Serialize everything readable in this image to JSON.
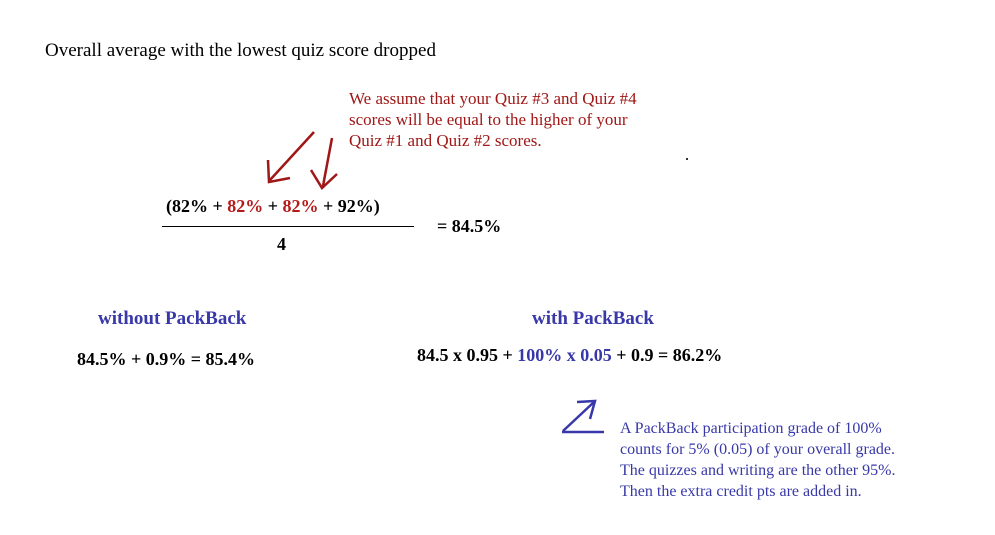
{
  "title": "Overall average  with the lowest quiz score dropped",
  "assumption_note": [
    "We assume that your Quiz #3 and Quiz #4",
    "scores will be equal to the higher of your",
    "Quiz #1 and Quiz #2 scores."
  ],
  "formula": {
    "open": "(82% + ",
    "quiz3": "82%",
    "plus1": " + ",
    "quiz4": "82%",
    "close": " + 92%)",
    "denominator": "4",
    "result": "= 84.5%"
  },
  "without_packback": {
    "heading": "without PackBack",
    "calc": "84.5% + 0.9% = 85.4%"
  },
  "with_packback": {
    "heading": "with PackBack",
    "calc_start": "84.5 x 0.95 + ",
    "calc_highlight": "100% x 0.05",
    "calc_end": " + 0.9 =  86.2%"
  },
  "packback_note": [
    "A PackBack participation grade of 100%",
    "counts for 5% (0.05) of your overall grade.",
    "The quizzes and writing are the other 95%.",
    "Then the extra credit pts are added in."
  ],
  "colors": {
    "red_annotation": "#a01717",
    "blue_annotation": "#3838a8"
  }
}
